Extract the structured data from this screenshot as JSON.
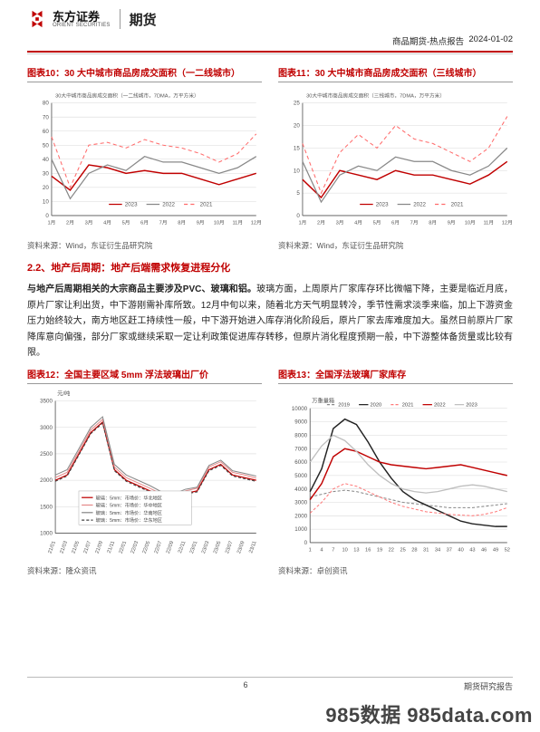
{
  "header": {
    "brand_cn": "东方证券",
    "brand_en": "ORIENT SECURITIES",
    "division": "期货",
    "doc_type": "商品期货-热点报告",
    "date": "2024-01-02"
  },
  "charts": {
    "c10": {
      "title": "图表10：30 大中城市商品房成交面积（一二线城市）",
      "note": "30大中城市商品房成交面积（一二线城市，7DMA，万平方米）",
      "source": "资料来源：Wind，东证衍生品研究院",
      "type": "line",
      "ylim": [
        0,
        80
      ],
      "yticks": [
        0,
        10,
        20,
        30,
        40,
        50,
        60,
        70,
        80
      ],
      "xticks": [
        "1月",
        "2月",
        "3月",
        "4月",
        "5月",
        "6月",
        "7月",
        "8月",
        "9月",
        "10月",
        "11月",
        "12月"
      ],
      "series": [
        {
          "name": "2023",
          "color": "#c00000",
          "width": 1.4,
          "dash": "none",
          "y": [
            28,
            18,
            36,
            34,
            30,
            32,
            30,
            30,
            26,
            22,
            26,
            30
          ]
        },
        {
          "name": "2022",
          "color": "#888888",
          "width": 1.2,
          "dash": "none",
          "y": [
            40,
            12,
            30,
            36,
            32,
            42,
            38,
            38,
            34,
            30,
            34,
            42
          ]
        },
        {
          "name": "2021",
          "color": "#ff6a6a",
          "width": 1.0,
          "dash": "4,3",
          "y": [
            56,
            20,
            50,
            52,
            48,
            54,
            50,
            48,
            44,
            38,
            44,
            58
          ]
        }
      ],
      "background": "#ffffff",
      "grid_color": "#d9d9d9",
      "axis_color": "#555"
    },
    "c11": {
      "title": "图表11：30 大中城市商品房成交面积（三线城市）",
      "note": "30大中城市商品房成交面积（三线城市，7DMA，万平方米）",
      "source": "资料来源：Wind，东证衍生品研究院",
      "type": "line",
      "ylim": [
        0,
        25
      ],
      "yticks": [
        0,
        5,
        10,
        15,
        20,
        25
      ],
      "xticks": [
        "1月",
        "2月",
        "3月",
        "4月",
        "5月",
        "6月",
        "7月",
        "8月",
        "9月",
        "10月",
        "11月",
        "12月"
      ],
      "series": [
        {
          "name": "2023",
          "color": "#c00000",
          "width": 1.4,
          "dash": "none",
          "y": [
            8,
            4,
            10,
            9,
            8,
            10,
            9,
            9,
            8,
            7,
            9,
            12
          ]
        },
        {
          "name": "2022",
          "color": "#888888",
          "width": 1.2,
          "dash": "none",
          "y": [
            12,
            3,
            9,
            11,
            10,
            13,
            12,
            12,
            10,
            9,
            11,
            15
          ]
        },
        {
          "name": "2021",
          "color": "#ff6a6a",
          "width": 1.0,
          "dash": "4,3",
          "y": [
            16,
            5,
            14,
            18,
            15,
            20,
            17,
            16,
            14,
            12,
            15,
            22
          ]
        }
      ],
      "background": "#ffffff",
      "grid_color": "#d9d9d9",
      "axis_color": "#555"
    },
    "c12": {
      "title": "图表12：全国主要区域 5mm 浮法玻璃出厂价",
      "ylabel": "元/吨",
      "source": "资料来源：隆众资讯",
      "type": "line",
      "ylim": [
        1000,
        3500
      ],
      "yticks": [
        1000,
        1500,
        2000,
        2500,
        3000,
        3500
      ],
      "xticks": [
        "21/01",
        "21/03",
        "21/05",
        "21/07",
        "21/09",
        "21/11",
        "22/01",
        "22/03",
        "22/05",
        "22/07",
        "22/09",
        "22/11",
        "23/01",
        "23/03",
        "23/05",
        "23/07",
        "23/09",
        "23/11"
      ],
      "legend": [
        {
          "label": "玻璃：5mm：市场价：华北地区",
          "color": "#c00000",
          "dash": "none"
        },
        {
          "label": "玻璃：5mm：市场价：华中地区",
          "color": "#e58b8b",
          "dash": "none"
        },
        {
          "label": "玻璃：5mm：市场价：华南地区",
          "color": "#888888",
          "dash": "none"
        },
        {
          "label": "玻璃：5mm：市场价：华东地区",
          "color": "#444444",
          "dash": "3,2"
        }
      ],
      "series": [
        {
          "color": "#c00000",
          "width": 1.2,
          "dash": "none",
          "y": [
            2000,
            2100,
            2500,
            2900,
            3100,
            2200,
            2000,
            1900,
            1800,
            1700,
            1650,
            1750,
            1800,
            2200,
            2300,
            2100,
            2050,
            2000
          ]
        },
        {
          "color": "#e58b8b",
          "width": 1.0,
          "dash": "none",
          "y": [
            2050,
            2150,
            2550,
            2950,
            3150,
            2250,
            2050,
            1950,
            1850,
            1740,
            1700,
            1800,
            1850,
            2250,
            2350,
            2150,
            2100,
            2040
          ]
        },
        {
          "color": "#888888",
          "width": 1.0,
          "dash": "none",
          "y": [
            2100,
            2200,
            2600,
            3000,
            3200,
            2300,
            2100,
            2000,
            1900,
            1780,
            1740,
            1830,
            1870,
            2280,
            2380,
            2180,
            2130,
            2080
          ]
        },
        {
          "color": "#444444",
          "width": 1.0,
          "dash": "3,2",
          "y": [
            1980,
            2080,
            2480,
            2880,
            3080,
            2180,
            1980,
            1880,
            1780,
            1680,
            1640,
            1740,
            1780,
            2180,
            2280,
            2080,
            2030,
            1980
          ]
        }
      ],
      "background": "#ffffff",
      "grid_color": "#d9d9d9",
      "axis_color": "#555"
    },
    "c13": {
      "title": "图表13：全国浮法玻璃厂家库存",
      "ylabel": "万重量箱",
      "source": "资料来源：卓创资讯",
      "type": "line",
      "ylim": [
        0,
        10000
      ],
      "yticks": [
        0,
        1000,
        2000,
        3000,
        4000,
        5000,
        6000,
        7000,
        8000,
        9000,
        10000
      ],
      "xticks": [
        1,
        4,
        7,
        10,
        13,
        16,
        19,
        22,
        25,
        28,
        31,
        34,
        37,
        40,
        43,
        46,
        49,
        52
      ],
      "legend": [
        {
          "label": "2019",
          "color": "#888888",
          "dash": "3,2"
        },
        {
          "label": "2020",
          "color": "#222222",
          "dash": "none"
        },
        {
          "label": "2021",
          "color": "#ff7a7a",
          "dash": "3,2"
        },
        {
          "label": "2022",
          "color": "#c00000",
          "dash": "none"
        },
        {
          "label": "2023",
          "color": "#bfbfbf",
          "dash": "none"
        }
      ],
      "series": [
        {
          "color": "#888888",
          "width": 1.0,
          "dash": "3,2",
          "y": [
            3400,
            3600,
            3800,
            3900,
            3800,
            3600,
            3400,
            3200,
            3000,
            2900,
            2800,
            2700,
            2600,
            2600,
            2600,
            2700,
            2800,
            2900
          ]
        },
        {
          "color": "#222222",
          "width": 1.4,
          "dash": "none",
          "y": [
            3800,
            5500,
            8500,
            9200,
            8800,
            7500,
            6000,
            4800,
            3800,
            3200,
            2800,
            2400,
            2000,
            1600,
            1400,
            1300,
            1200,
            1200
          ]
        },
        {
          "color": "#ff7a7a",
          "width": 1.0,
          "dash": "3,2",
          "y": [
            2200,
            3000,
            4000,
            4400,
            4200,
            3800,
            3400,
            3000,
            2700,
            2500,
            2300,
            2200,
            2100,
            2050,
            2000,
            2100,
            2300,
            2600
          ]
        },
        {
          "color": "#c00000",
          "width": 1.4,
          "dash": "none",
          "y": [
            3200,
            4400,
            6400,
            7000,
            6800,
            6400,
            6000,
            5800,
            5700,
            5600,
            5500,
            5600,
            5700,
            5800,
            5600,
            5400,
            5200,
            5000
          ]
        },
        {
          "color": "#bfbfbf",
          "width": 1.3,
          "dash": "none",
          "y": [
            6000,
            7200,
            8000,
            7600,
            6800,
            5800,
            5000,
            4400,
            4000,
            3800,
            3700,
            3800,
            4000,
            4200,
            4300,
            4200,
            4000,
            3800
          ]
        }
      ],
      "background": "#ffffff",
      "grid_color": "#d9d9d9",
      "axis_color": "#555"
    }
  },
  "section": {
    "heading": "2.2、地产后周期：地产后端需求恢复进程分化",
    "para_bold": "与地产后周期相关的大宗商品主要涉及PVC、玻璃和铝。",
    "para_rest": "玻璃方面，上周原片厂家库存环比微幅下降，主要是临近月底，原片厂家让利出货，中下游刚需补库所致。12月中旬以来，随着北方天气明显转冷，季节性需求淡季来临，加上下游资金压力始终较大，南方地区赶工持续性一般，中下游开始进入库存消化阶段后，原片厂家去库难度加大。虽然日前原片厂家降库意向偏强，部分厂家或继续采取一定让利政策促进库存转移，但原片消化程度预期一般，中下游整体备货量或比较有限。"
  },
  "footer": {
    "page": "6",
    "label": "期货研究报告"
  },
  "watermark": "985数据 985data.com"
}
